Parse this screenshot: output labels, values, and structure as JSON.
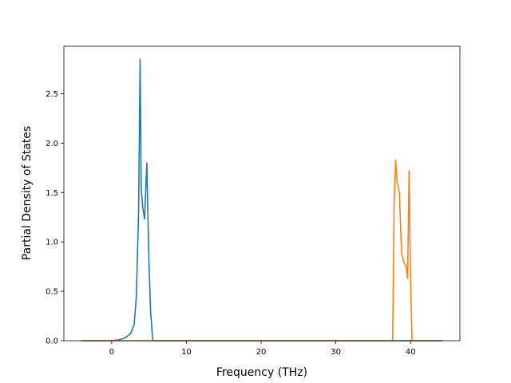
{
  "chart_data": {
    "type": "line",
    "title": "",
    "xlabel": "Frequency (THz)",
    "ylabel": "Partial Density of States",
    "xlim": [
      -6.4,
      46.6
    ],
    "ylim": [
      0,
      2.98
    ],
    "x_ticks": [
      0,
      10,
      20,
      30,
      40
    ],
    "y_ticks": [
      0.0,
      0.5,
      1.0,
      1.5,
      2.0,
      2.5
    ],
    "x_tick_labels": [
      "0",
      "10",
      "20",
      "30",
      "40"
    ],
    "y_tick_labels": [
      "0.0",
      "0.5",
      "1.0",
      "1.5",
      "2.0",
      "2.5"
    ],
    "grid": false,
    "legend": "none",
    "series": [
      {
        "color": "#1f77b4",
        "x": [
          -4.1,
          0.0,
          0.5,
          1.0,
          1.5,
          2.0,
          2.5,
          3.0,
          3.3,
          3.6,
          3.8,
          3.95,
          4.15,
          4.4,
          4.7,
          4.95,
          5.2,
          5.5,
          5.8,
          6.2,
          44.3
        ],
        "y": [
          0.0,
          0.0,
          0.005,
          0.01,
          0.02,
          0.04,
          0.07,
          0.16,
          0.45,
          1.3,
          2.85,
          1.55,
          1.35,
          1.23,
          1.8,
          0.9,
          0.3,
          0.0,
          0.0,
          0.0,
          0.0
        ]
      },
      {
        "color": "#ff7f0e",
        "x": [
          -4.1,
          37.6,
          37.8,
          38.0,
          38.2,
          38.5,
          38.8,
          39.1,
          39.4,
          39.6,
          39.8,
          40.0,
          40.2,
          40.4,
          44.3
        ],
        "y": [
          0.0,
          0.0,
          1.4,
          1.83,
          1.6,
          1.5,
          0.88,
          0.8,
          0.75,
          0.63,
          1.72,
          0.6,
          0.0,
          0.0,
          0.0
        ]
      }
    ]
  }
}
